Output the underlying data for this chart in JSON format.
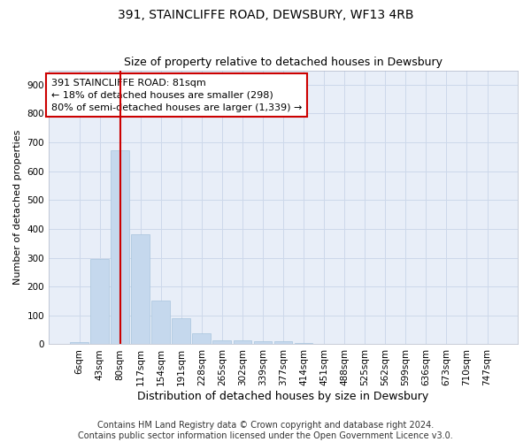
{
  "title": "391, STAINCLIFFE ROAD, DEWSBURY, WF13 4RB",
  "subtitle": "Size of property relative to detached houses in Dewsbury",
  "xlabel": "Distribution of detached houses by size in Dewsbury",
  "ylabel": "Number of detached properties",
  "bar_color": "#c5d8ed",
  "bar_edge_color": "#a8c4dd",
  "grid_color": "#cdd8ea",
  "background_color": "#e8eef8",
  "vline_color": "#cc0000",
  "vline_x": 2.0,
  "annotation_box_color": "#cc0000",
  "annotation_line1": "391 STAINCLIFFE ROAD: 81sqm",
  "annotation_line2": "← 18% of detached houses are smaller (298)",
  "annotation_line3": "80% of semi-detached houses are larger (1,339) →",
  "categories": [
    "6sqm",
    "43sqm",
    "80sqm",
    "117sqm",
    "154sqm",
    "191sqm",
    "228sqm",
    "265sqm",
    "302sqm",
    "339sqm",
    "377sqm",
    "414sqm",
    "451sqm",
    "488sqm",
    "525sqm",
    "562sqm",
    "599sqm",
    "636sqm",
    "673sqm",
    "710sqm",
    "747sqm"
  ],
  "bar_heights": [
    8,
    295,
    672,
    380,
    152,
    90,
    38,
    15,
    13,
    11,
    10,
    5,
    0,
    0,
    0,
    0,
    0,
    0,
    0,
    0,
    0
  ],
  "ylim": [
    0,
    950
  ],
  "yticks": [
    0,
    100,
    200,
    300,
    400,
    500,
    600,
    700,
    800,
    900
  ],
  "footer": "Contains HM Land Registry data © Crown copyright and database right 2024.\nContains public sector information licensed under the Open Government Licence v3.0.",
  "title_fontsize": 10,
  "subtitle_fontsize": 9,
  "xlabel_fontsize": 9,
  "ylabel_fontsize": 8,
  "tick_fontsize": 7.5,
  "footer_fontsize": 7,
  "annotation_fontsize": 8
}
